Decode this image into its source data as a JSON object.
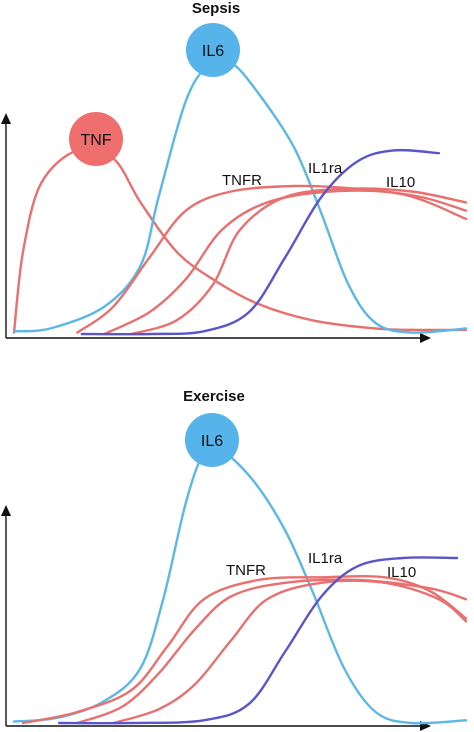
{
  "colors": {
    "tnf": "#e8706f",
    "il6": "#5bb8e6",
    "il10": "#5a55c8",
    "tnf_bubble": "#ef6f6e",
    "il6_bubble": "#56b4ea",
    "axis": "#111111"
  },
  "chart_data": [
    {
      "type": "line",
      "title": "Sepsis",
      "xlabel": "",
      "ylabel": "",
      "xlim": [
        0,
        100
      ],
      "ylim": [
        0,
        100
      ],
      "grid": false,
      "series": [
        {
          "name": "TNF",
          "color": "tnf",
          "points": [
            [
              0,
              0.5
            ],
            [
              2,
              30
            ],
            [
              6,
              55
            ],
            [
              14,
              67
            ],
            [
              22,
              64
            ],
            [
              28,
              48
            ],
            [
              36,
              30
            ],
            [
              44,
              20
            ],
            [
              54,
              11
            ],
            [
              66,
              5
            ],
            [
              80,
              2
            ],
            [
              90,
              1.5
            ],
            [
              100,
              1.5
            ]
          ]
        },
        {
          "name": "IL6",
          "color": "il6",
          "points": [
            [
              0,
              1
            ],
            [
              8,
              2
            ],
            [
              20,
              10
            ],
            [
              28,
              25
            ],
            [
              32,
              50
            ],
            [
              38,
              85
            ],
            [
              43,
              98
            ],
            [
              48,
              99
            ],
            [
              54,
              88
            ],
            [
              62,
              68
            ],
            [
              68,
              44
            ],
            [
              74,
              18
            ],
            [
              80,
              4
            ],
            [
              88,
              0.5
            ],
            [
              100,
              2
            ]
          ]
        },
        {
          "name": "TNFR",
          "color": "tnf",
          "points": [
            [
              14,
              0.5
            ],
            [
              22,
              10
            ],
            [
              30,
              28
            ],
            [
              38,
              45
            ],
            [
              48,
              52
            ],
            [
              62,
              54
            ],
            [
              76,
              53
            ],
            [
              90,
              50
            ],
            [
              100,
              45
            ]
          ]
        },
        {
          "name": "",
          "color": "tnf",
          "points": [
            [
              20,
              0
            ],
            [
              30,
              8
            ],
            [
              38,
              20
            ],
            [
              46,
              38
            ],
            [
              56,
              48
            ],
            [
              70,
              52
            ],
            [
              86,
              51
            ],
            [
              100,
              42
            ]
          ]
        },
        {
          "name": "IL1ra",
          "color": "tnf",
          "points": [
            [
              26,
              0
            ],
            [
              36,
              5
            ],
            [
              44,
              18
            ],
            [
              50,
              38
            ],
            [
              60,
              50
            ],
            [
              74,
              53
            ],
            [
              88,
              52
            ],
            [
              100,
              48
            ]
          ]
        },
        {
          "name": "IL10",
          "color": "il10",
          "points": [
            [
              15,
              0
            ],
            [
              30,
              0
            ],
            [
              42,
              1
            ],
            [
              52,
              8
            ],
            [
              60,
              28
            ],
            [
              68,
              50
            ],
            [
              76,
              63
            ],
            [
              84,
              67
            ],
            [
              94,
              66
            ]
          ]
        }
      ],
      "annotations": [
        {
          "text": "TNF",
          "kind": "bubble",
          "color": "tnf_bubble"
        },
        {
          "text": "IL6",
          "kind": "bubble",
          "color": "il6_bubble"
        },
        {
          "text": "TNFR",
          "kind": "label"
        },
        {
          "text": "IL1ra",
          "kind": "label"
        },
        {
          "text": "IL10",
          "kind": "label"
        }
      ]
    },
    {
      "type": "line",
      "title": "Exercise",
      "xlabel": "",
      "ylabel": "",
      "xlim": [
        0,
        100
      ],
      "ylim": [
        0,
        100
      ],
      "grid": false,
      "series": [
        {
          "name": "IL6",
          "color": "il6",
          "points": [
            [
              0,
              0.5
            ],
            [
              10,
              2
            ],
            [
              20,
              8
            ],
            [
              28,
              20
            ],
            [
              33,
              45
            ],
            [
              38,
              80
            ],
            [
              42,
              98
            ],
            [
              46,
              99
            ],
            [
              53,
              88
            ],
            [
              60,
              70
            ],
            [
              66,
              48
            ],
            [
              73,
              20
            ],
            [
              80,
              4
            ],
            [
              88,
              0
            ],
            [
              100,
              1
            ]
          ]
        },
        {
          "name": "TNFR",
          "color": "tnf",
          "points": [
            [
              2,
              0
            ],
            [
              14,
              4
            ],
            [
              26,
              12
            ],
            [
              34,
              28
            ],
            [
              42,
              45
            ],
            [
              54,
              52
            ],
            [
              68,
              53
            ],
            [
              82,
              53
            ],
            [
              92,
              48
            ],
            [
              100,
              38
            ]
          ]
        },
        {
          "name": "",
          "color": "tnf",
          "points": [
            [
              14,
              0
            ],
            [
              24,
              6
            ],
            [
              32,
              18
            ],
            [
              40,
              34
            ],
            [
              48,
              46
            ],
            [
              60,
              51
            ],
            [
              76,
              52
            ],
            [
              92,
              49
            ],
            [
              100,
              45
            ]
          ]
        },
        {
          "name": "IL1ra",
          "color": "tnf",
          "points": [
            [
              22,
              0
            ],
            [
              32,
              5
            ],
            [
              40,
              14
            ],
            [
              48,
              30
            ],
            [
              56,
              45
            ],
            [
              68,
              51
            ],
            [
              82,
              51
            ],
            [
              94,
              45
            ],
            [
              100,
              37
            ]
          ]
        },
        {
          "name": "IL10",
          "color": "il10",
          "points": [
            [
              10,
              0
            ],
            [
              26,
              0
            ],
            [
              42,
              1
            ],
            [
              52,
              7
            ],
            [
              60,
              26
            ],
            [
              68,
              46
            ],
            [
              76,
              57
            ],
            [
              86,
              60
            ],
            [
              98,
              60
            ]
          ]
        }
      ],
      "annotations": [
        {
          "text": "IL6",
          "kind": "bubble",
          "color": "il6_bubble"
        },
        {
          "text": "TNFR",
          "kind": "label"
        },
        {
          "text": "IL1ra",
          "kind": "label"
        },
        {
          "text": "IL10",
          "kind": "label"
        }
      ]
    }
  ]
}
